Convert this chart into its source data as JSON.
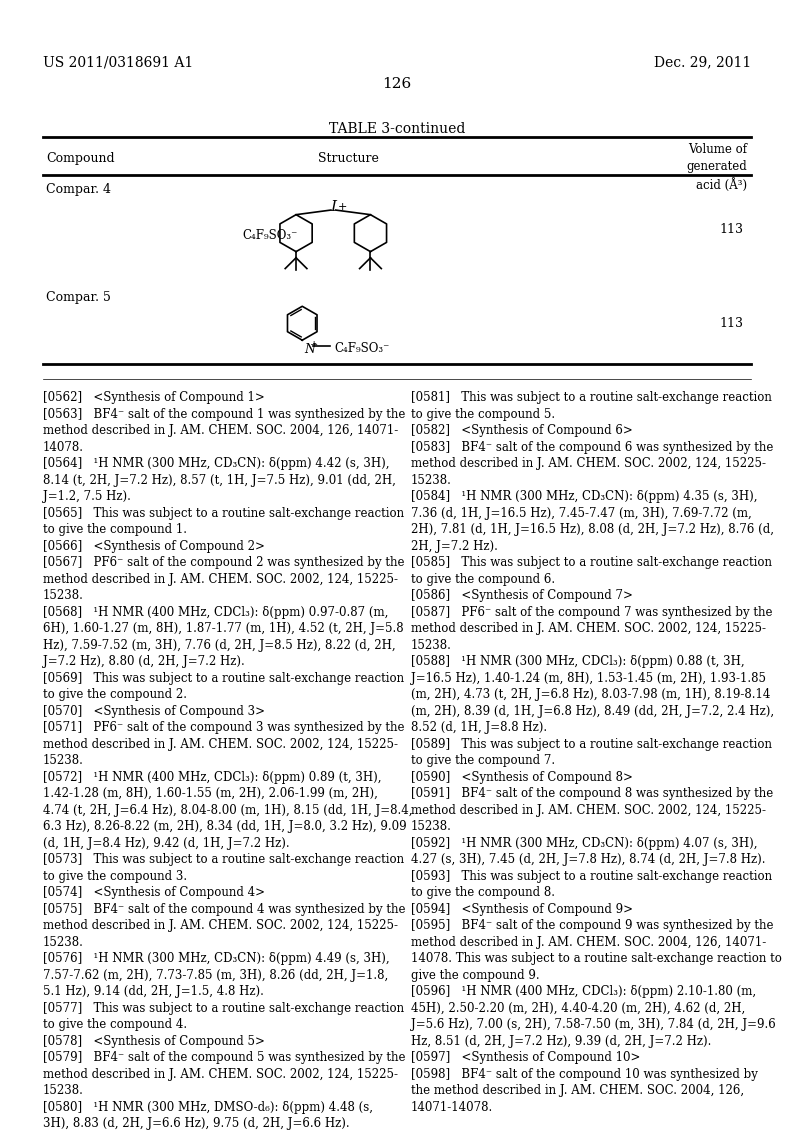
{
  "patent_number": "US 2011/0318691 A1",
  "date": "Dec. 29, 2011",
  "page_number": "126",
  "table_title": "TABLE 3-continued",
  "col_header_compound": "Compound",
  "col_header_structure": "Structure",
  "col_header_volume": "Volume of\ngenerated\nacid (Å³)",
  "row1_compound": "Compar. 4",
  "row1_value": "113",
  "row2_compound": "Compar. 5",
  "row2_value": "113",
  "body_text_left": "[0562]   <Synthesis of Compound 1>\n[0563]   BF4⁻ salt of the compound 1 was synthesized by the\nmethod described in J. AM. CHEM. SOC. 2004, 126, 14071-\n14078.\n[0564]   ¹H NMR (300 MHz, CD₃CN): δ(ppm) 4.42 (s, 3H),\n8.14 (t, 2H, J=7.2 Hz), 8.57 (t, 1H, J=7.5 Hz), 9.01 (dd, 2H,\nJ=1.2, 7.5 Hz).\n[0565]   This was subject to a routine salt-exchange reaction\nto give the compound 1.\n[0566]   <Synthesis of Compound 2>\n[0567]   PF6⁻ salt of the compound 2 was synthesized by the\nmethod described in J. AM. CHEM. SOC. 2002, 124, 15225-\n15238.\n[0568]   ¹H NMR (400 MHz, CDCl₃): δ(ppm) 0.97-0.87 (m,\n6H), 1.60-1.27 (m, 8H), 1.87-1.77 (m, 1H), 4.52 (t, 2H, J=5.8\nHz), 7.59-7.52 (m, 3H), 7.76 (d, 2H, J=8.5 Hz), 8.22 (d, 2H,\nJ=7.2 Hz), 8.80 (d, 2H, J=7.2 Hz).\n[0569]   This was subject to a routine salt-exchange reaction\nto give the compound 2.\n[0570]   <Synthesis of Compound 3>\n[0571]   PF6⁻ salt of the compound 3 was synthesized by the\nmethod described in J. AM. CHEM. SOC. 2002, 124, 15225-\n15238.\n[0572]   ¹H NMR (400 MHz, CDCl₃): δ(ppm) 0.89 (t, 3H),\n1.42-1.28 (m, 8H), 1.60-1.55 (m, 2H), 2.06-1.99 (m, 2H),\n4.74 (t, 2H, J=6.4 Hz), 8.04-8.00 (m, 1H), 8.15 (dd, 1H, J=8.4,\n6.3 Hz), 8.26-8.22 (m, 2H), 8.34 (dd, 1H, J=8.0, 3.2 Hz), 9.09\n(d, 1H, J=8.4 Hz), 9.42 (d, 1H, J=7.2 Hz).\n[0573]   This was subject to a routine salt-exchange reaction\nto give the compound 3.\n[0574]   <Synthesis of Compound 4>\n[0575]   BF4⁻ salt of the compound 4 was synthesized by the\nmethod described in J. AM. CHEM. SOC. 2002, 124, 15225-\n15238.\n[0576]   ¹H NMR (300 MHz, CD₃CN): δ(ppm) 4.49 (s, 3H),\n7.57-7.62 (m, 2H), 7.73-7.85 (m, 3H), 8.26 (dd, 2H, J=1.8,\n5.1 Hz), 9.14 (dd, 2H, J=1.5, 4.8 Hz).\n[0577]   This was subject to a routine salt-exchange reaction\nto give the compound 4.\n[0578]   <Synthesis of Compound 5>\n[0579]   BF4⁻ salt of the compound 5 was synthesized by the\nmethod described in J. AM. CHEM. SOC. 2002, 124, 15225-\n15238.\n[0580]   ¹H NMR (300 MHz, DMSO-d₆): δ(ppm) 4.48 (s,\n3H), 8.83 (d, 2H, J=6.6 Hz), 9.75 (d, 2H, J=6.6 Hz).",
  "body_text_right": "[0581]   This was subject to a routine salt-exchange reaction\nto give the compound 5.\n[0582]   <Synthesis of Compound 6>\n[0583]   BF4⁻ salt of the compound 6 was synthesized by the\nmethod described in J. AM. CHEM. SOC. 2002, 124, 15225-\n15238.\n[0584]   ¹H NMR (300 MHz, CD₃CN): δ(ppm) 4.35 (s, 3H),\n7.36 (d, 1H, J=16.5 Hz), 7.45-7.47 (m, 3H), 7.69-7.72 (m,\n2H), 7.81 (d, 1H, J=16.5 Hz), 8.08 (d, 2H, J=7.2 Hz), 8.76 (d,\n2H, J=7.2 Hz).\n[0585]   This was subject to a routine salt-exchange reaction\nto give the compound 6.\n[0586]   <Synthesis of Compound 7>\n[0587]   PF6⁻ salt of the compound 7 was synthesized by the\nmethod described in J. AM. CHEM. SOC. 2002, 124, 15225-\n15238.\n[0588]   ¹H NMR (300 MHz, CDCl₃): δ(ppm) 0.88 (t, 3H,\nJ=16.5 Hz), 1.40-1.24 (m, 8H), 1.53-1.45 (m, 2H), 1.93-1.85\n(m, 2H), 4.73 (t, 2H, J=6.8 Hz), 8.03-7.98 (m, 1H), 8.19-8.14\n(m, 2H), 8.39 (d, 1H, J=6.8 Hz), 8.49 (dd, 2H, J=7.2, 2.4 Hz),\n8.52 (d, 1H, J=8.8 Hz).\n[0589]   This was subject to a routine salt-exchange reaction\nto give the compound 7.\n[0590]   <Synthesis of Compound 8>\n[0591]   BF4⁻ salt of the compound 8 was synthesized by the\nmethod described in J. AM. CHEM. SOC. 2002, 124, 15225-\n15238.\n[0592]   ¹H NMR (300 MHz, CD₃CN): δ(ppm) 4.07 (s, 3H),\n4.27 (s, 3H), 7.45 (d, 2H, J=7.8 Hz), 8.74 (d, 2H, J=7.8 Hz).\n[0593]   This was subject to a routine salt-exchange reaction\nto give the compound 8.\n[0594]   <Synthesis of Compound 9>\n[0595]   BF4⁻ salt of the compound 9 was synthesized by the\nmethod described in J. AM. CHEM. SOC. 2004, 126, 14071-\n14078. This was subject to a routine salt-exchange reaction to\ngive the compound 9.\n[0596]   ¹H NMR (400 MHz, CDCl₃): δ(ppm) 2.10-1.80 (m,\n45H), 2.50-2.20 (m, 2H), 4.40-4.20 (m, 2H), 4.62 (d, 2H,\nJ=5.6 Hz), 7.00 (s, 2H), 7.58-7.50 (m, 3H), 7.84 (d, 2H, J=9.6\nHz, 8.51 (d, 2H, J=7.2 Hz), 9.39 (d, 2H, J=7.2 Hz).\n[0597]   <Synthesis of Compound 10>\n[0598]   BF4⁻ salt of the compound 10 was synthesized by\nthe method described in J. AM. CHEM. SOC. 2004, 126,\n14071-14078.",
  "bg_color": "#ffffff",
  "text_color": "#000000",
  "font_size": 8.5
}
